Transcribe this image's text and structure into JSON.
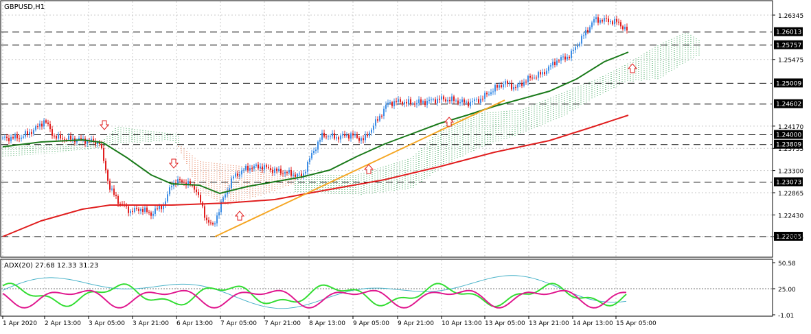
{
  "chart_title": "GBPUSD,H1",
  "indicator_label": "ADX(20) 27.68 12.33 31.23",
  "colors": {
    "candle_up": "#3d8ee6",
    "candle_down": "#e01e1e",
    "ma_fast": "#1a7a1a",
    "ma_slow": "#e01e1e",
    "trendline": "#f5a623",
    "cloud_bull": "#2e9e4e",
    "cloud_bear": "#e0663a",
    "adx_main": "#4ab3c9",
    "adx_plus": "#33dd33",
    "adx_minus": "#e0198f",
    "arrow": "#e01e1e",
    "price_label_bg": "#000000",
    "price_label_text": "#ffffff"
  },
  "price_axis": {
    "ticks": [
      "1.26345",
      "1.25475",
      "1.24170",
      "1.23735",
      "1.23300",
      "1.22865",
      "1.22430",
      "1.22005"
    ],
    "levels": [
      "1.26013",
      "1.25757",
      "1.25009",
      "1.24602",
      "1.24000",
      "1.23809",
      "1.23073",
      "1.22005"
    ],
    "boxed_labels": [
      "1.26013",
      "1.25757",
      "1.25009",
      "1.24602",
      "1.24000",
      "1.23809",
      "1.23073",
      "1.22005"
    ]
  },
  "adx_axis": {
    "ticks": [
      "50.58",
      "25.00",
      "-1.01"
    ]
  },
  "time_axis": {
    "labels": [
      "1 Apr 2020",
      "2 Apr 13:00",
      "3 Apr 05:00",
      "3 Apr 21:00",
      "6 Apr 13:00",
      "7 Apr 05:00",
      "7 Apr 21:00",
      "8 Apr 13:00",
      "9 Apr 05:00",
      "9 Apr 21:00",
      "10 Apr 13:00",
      "13 Apr 05:00",
      "13 Apr 21:00",
      "14 Apr 13:00",
      "15 Apr 05:00"
    ]
  },
  "arrows": [
    {
      "dir": "down"
    },
    {
      "dir": "down"
    },
    {
      "dir": "up"
    },
    {
      "dir": "up"
    },
    {
      "dir": "up"
    },
    {
      "dir": "up"
    }
  ]
}
